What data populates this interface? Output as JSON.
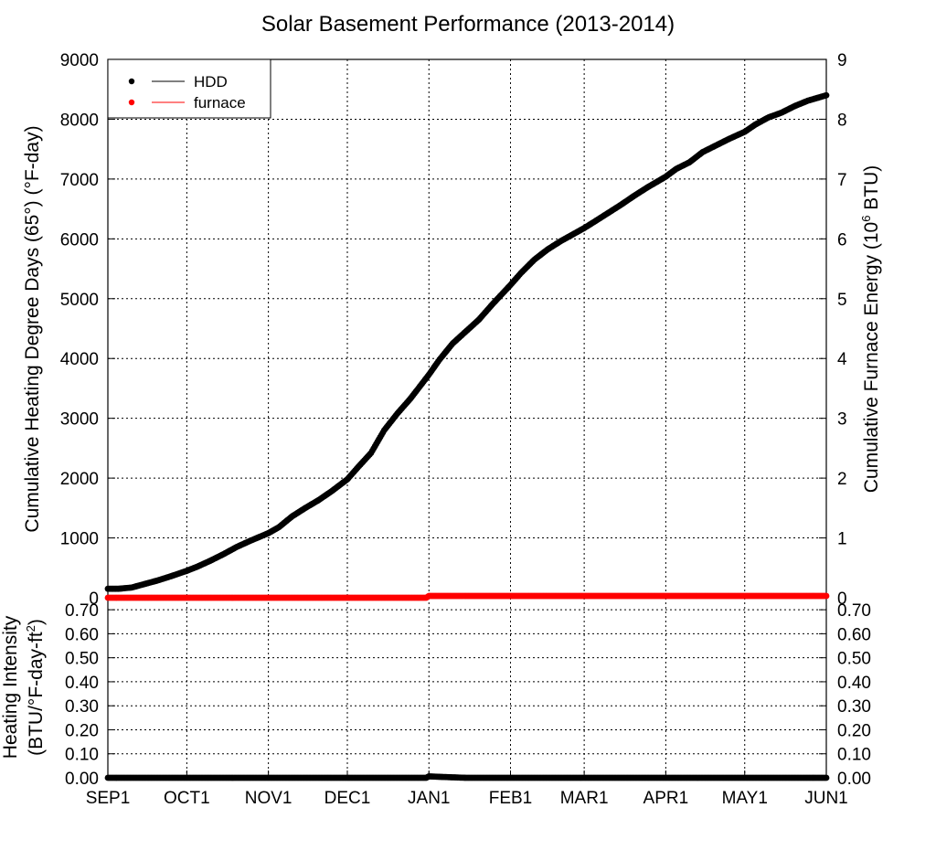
{
  "chart_data": [
    {
      "panel": "top",
      "type": "scatter",
      "title": "Solar Basement Performance (2013-2014)",
      "ylabel": "Cumulative Heating Degree Days (65°) (°F-day)",
      "y2label": "Cumulative Furnace Energy (10^6 BTU)",
      "y2label_parts": [
        "Cumulative Furnace Energy (10",
        "6",
        " BTU)"
      ],
      "ylim": [
        0,
        9000
      ],
      "y2lim": [
        0,
        9
      ],
      "yticks": [
        "0",
        "1000",
        "2000",
        "3000",
        "4000",
        "5000",
        "6000",
        "7000",
        "8000",
        "9000"
      ],
      "y2ticks": [
        "0",
        "1",
        "2",
        "3",
        "4",
        "5",
        "6",
        "7",
        "8",
        "9"
      ],
      "x_dates": [
        "SEP1",
        "OCT1",
        "NOV1",
        "DEC1",
        "JAN1",
        "FEB1",
        "MAR1",
        "APR1",
        "MAY1",
        "JUN1"
      ],
      "x_day_offsets_of_dates": [
        0,
        30,
        61,
        91,
        122,
        153,
        181,
        212,
        242,
        273
      ],
      "grid": true,
      "legend_position": "top-left",
      "series": [
        {
          "name": "HDD",
          "color": "#000000",
          "axis": "left",
          "points": [
            [
              "SEP1",
              150
            ],
            [
              "SEP5",
              150
            ],
            [
              "SEP10",
              170
            ],
            [
              "SEP15",
              230
            ],
            [
              "SEP20",
              290
            ],
            [
              "SEP25",
              360
            ],
            [
              "OCT1",
              450
            ],
            [
              "OCT5",
              520
            ],
            [
              "OCT10",
              620
            ],
            [
              "OCT15",
              730
            ],
            [
              "OCT20",
              850
            ],
            [
              "OCT25",
              950
            ],
            [
              "NOV1",
              1080
            ],
            [
              "NOV5",
              1180
            ],
            [
              "NOV10",
              1360
            ],
            [
              "NOV15",
              1500
            ],
            [
              "NOV20",
              1630
            ],
            [
              "NOV25",
              1780
            ],
            [
              "DEC1",
              1980
            ],
            [
              "DEC5",
              2180
            ],
            [
              "DEC10",
              2420
            ],
            [
              "DEC15",
              2800
            ],
            [
              "DEC20",
              3080
            ],
            [
              "DEC25",
              3330
            ],
            [
              "JAN1",
              3730
            ],
            [
              "JAN5",
              3980
            ],
            [
              "JAN10",
              4250
            ],
            [
              "JAN15",
              4450
            ],
            [
              "JAN20",
              4650
            ],
            [
              "JAN25",
              4900
            ],
            [
              "FEB1",
              5230
            ],
            [
              "FEB5",
              5430
            ],
            [
              "FEB10",
              5650
            ],
            [
              "FEB15",
              5820
            ],
            [
              "FEB20",
              5960
            ],
            [
              "MAR1",
              6180
            ],
            [
              "MAR5",
              6290
            ],
            [
              "MAR10",
              6430
            ],
            [
              "MAR15",
              6570
            ],
            [
              "MAR20",
              6720
            ],
            [
              "MAR25",
              6860
            ],
            [
              "APR1",
              7040
            ],
            [
              "APR5",
              7170
            ],
            [
              "APR10",
              7280
            ],
            [
              "APR15",
              7450
            ],
            [
              "APR20",
              7560
            ],
            [
              "APR25",
              7670
            ],
            [
              "MAY1",
              7790
            ],
            [
              "MAY5",
              7910
            ],
            [
              "MAY10",
              8030
            ],
            [
              "MAY15",
              8110
            ],
            [
              "MAY20",
              8220
            ],
            [
              "MAY25",
              8310
            ],
            [
              "JUN1",
              8400
            ]
          ]
        },
        {
          "name": "furnace",
          "color": "#ff0000",
          "axis": "right",
          "points": [
            [
              "SEP1",
              0
            ],
            [
              "DEC31",
              0
            ],
            [
              "JAN1",
              0.03
            ],
            [
              "JUN1",
              0.03
            ]
          ]
        }
      ]
    },
    {
      "panel": "bottom",
      "type": "scatter",
      "ylabel": "Heating Intensity",
      "ylabel2_parts": [
        "(BTU/°F-day-ft",
        "2",
        ")"
      ],
      "ylim": [
        0,
        0.75
      ],
      "yticks": [
        "0.00",
        "0.10",
        "0.20",
        "0.30",
        "0.40",
        "0.50",
        "0.60",
        "0.70"
      ],
      "y2ticks": [
        "0.00",
        "0.10",
        "0.20",
        "0.30",
        "0.40",
        "0.50",
        "0.60",
        "0.70"
      ],
      "x_dates": [
        "SEP1",
        "OCT1",
        "NOV1",
        "DEC1",
        "JAN1",
        "FEB1",
        "MAR1",
        "APR1",
        "MAY1",
        "JUN1"
      ],
      "grid": true,
      "series": [
        {
          "color": "#000000",
          "points": [
            [
              "SEP1",
              0
            ],
            [
              "DEC31",
              0
            ],
            [
              "JAN1",
              0.006
            ],
            [
              "JAN5",
              0.004
            ],
            [
              "JAN10",
              0.002
            ],
            [
              "JAN15",
              0
            ],
            [
              "JUN1",
              0
            ]
          ]
        }
      ]
    }
  ]
}
